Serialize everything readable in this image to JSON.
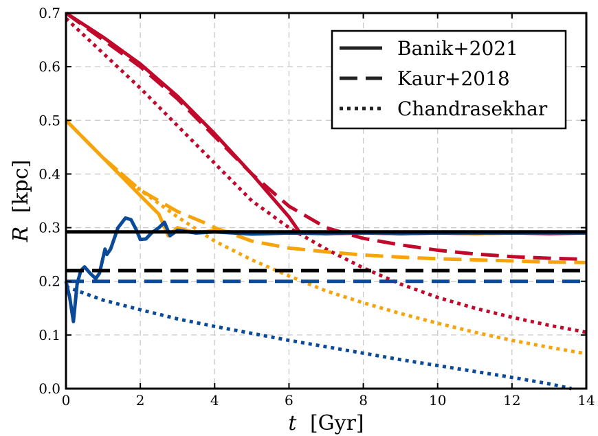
{
  "chart_data": {
    "type": "line",
    "xlabel_var": "t",
    "xlabel_unit": "[Gyr]",
    "ylabel_var": "R",
    "ylabel_unit": "[kpc]",
    "xlim": [
      0,
      14
    ],
    "ylim": [
      0.0,
      0.7
    ],
    "xticks": [
      0,
      2,
      4,
      6,
      8,
      10,
      12,
      14
    ],
    "yticks": [
      0.0,
      0.1,
      0.2,
      0.3,
      0.4,
      0.5,
      0.6,
      0.7
    ],
    "xtick_labels": [
      "0",
      "2",
      "4",
      "6",
      "8",
      "10",
      "12",
      "14"
    ],
    "ytick_labels": [
      "0.0",
      "0.1",
      "0.2",
      "0.3",
      "0.4",
      "0.5",
      "0.6",
      "0.7"
    ],
    "grid": true,
    "legend_position": "top-right",
    "legend": [
      {
        "label": "Banik+2021",
        "style": "solid"
      },
      {
        "label": "Kaur+2018",
        "style": "dashed"
      },
      {
        "label": "Chandrasekhar",
        "style": "dotted"
      }
    ],
    "colors": {
      "red": "#c0092b",
      "orange": "#f7a30b",
      "blue": "#0a4a98",
      "black": "#000000"
    },
    "series": [
      {
        "color": "red",
        "style": "solid",
        "x": [
          0,
          1,
          2,
          3,
          4,
          5,
          6,
          6.3,
          6.6,
          7,
          8,
          9,
          10,
          11,
          12,
          13,
          14
        ],
        "y": [
          0.7,
          0.655,
          0.605,
          0.545,
          0.475,
          0.4,
          0.32,
          0.29,
          0.29,
          0.289,
          0.29,
          0.289,
          0.29,
          0.289,
          0.29,
          0.289,
          0.29
        ]
      },
      {
        "color": "red",
        "style": "dashed",
        "x": [
          0,
          1,
          2,
          3,
          4,
          5,
          6,
          7,
          8,
          9,
          10,
          11,
          12,
          13,
          14
        ],
        "y": [
          0.7,
          0.65,
          0.6,
          0.54,
          0.47,
          0.4,
          0.34,
          0.3,
          0.28,
          0.268,
          0.258,
          0.251,
          0.246,
          0.243,
          0.241
        ]
      },
      {
        "color": "red",
        "style": "dotted",
        "x": [
          0,
          1,
          2,
          3,
          4,
          5,
          6,
          7,
          8,
          9,
          10,
          11,
          12,
          13,
          14
        ],
        "y": [
          0.69,
          0.625,
          0.56,
          0.49,
          0.42,
          0.35,
          0.3,
          0.26,
          0.225,
          0.195,
          0.17,
          0.15,
          0.133,
          0.118,
          0.105
        ]
      },
      {
        "color": "orange",
        "style": "solid",
        "x": [
          0,
          0.5,
          1,
          1.5,
          2,
          2.5,
          2.75,
          3,
          3.5,
          4,
          5,
          6,
          7,
          8,
          9,
          10,
          11,
          12,
          13,
          14
        ],
        "y": [
          0.5,
          0.465,
          0.43,
          0.395,
          0.36,
          0.325,
          0.285,
          0.3,
          0.29,
          0.295,
          0.288,
          0.292,
          0.289,
          0.291,
          0.289,
          0.291,
          0.289,
          0.29,
          0.29,
          0.29
        ]
      },
      {
        "color": "orange",
        "style": "dashed",
        "x": [
          0,
          1,
          2,
          3,
          3.7,
          4,
          5,
          6,
          7,
          8,
          9,
          10,
          11,
          12,
          13,
          14
        ],
        "y": [
          0.5,
          0.43,
          0.37,
          0.33,
          0.31,
          0.3,
          0.275,
          0.262,
          0.255,
          0.249,
          0.245,
          0.242,
          0.24,
          0.238,
          0.236,
          0.235
        ]
      },
      {
        "color": "orange",
        "style": "dotted",
        "x": [
          0,
          1,
          2,
          3,
          4,
          5,
          6,
          7,
          8,
          9,
          10,
          11,
          12,
          13,
          14
        ],
        "y": [
          0.5,
          0.43,
          0.37,
          0.32,
          0.275,
          0.24,
          0.21,
          0.182,
          0.16,
          0.14,
          0.122,
          0.105,
          0.09,
          0.077,
          0.065
        ]
      },
      {
        "color": "blue",
        "style": "solid",
        "x": [
          0,
          0.1,
          0.2,
          0.3,
          0.4,
          0.5,
          0.65,
          0.8,
          0.9,
          1.0,
          1.05,
          1.1,
          1.2,
          1.4,
          1.6,
          1.75,
          1.9,
          2.0,
          2.15,
          2.3,
          2.5,
          2.65,
          2.8,
          3,
          3.5,
          4,
          5,
          6,
          7,
          8,
          9,
          10,
          11,
          12,
          13,
          14
        ],
        "y": [
          0.2,
          0.17,
          0.125,
          0.195,
          0.22,
          0.227,
          0.215,
          0.205,
          0.215,
          0.245,
          0.26,
          0.25,
          0.26,
          0.3,
          0.318,
          0.315,
          0.295,
          0.278,
          0.279,
          0.29,
          0.3,
          0.31,
          0.285,
          0.295,
          0.29,
          0.292,
          0.288,
          0.29,
          0.289,
          0.291,
          0.289,
          0.29,
          0.29,
          0.29,
          0.29,
          0.29
        ]
      },
      {
        "color": "blue",
        "style": "dotted",
        "x": [
          0,
          1,
          2,
          3,
          4,
          5,
          6,
          7,
          8,
          9,
          10,
          11,
          12,
          13,
          13.6
        ],
        "y": [
          0.19,
          0.165,
          0.147,
          0.13,
          0.116,
          0.103,
          0.09,
          0.078,
          0.066,
          0.054,
          0.043,
          0.032,
          0.021,
          0.009,
          0.0
        ]
      },
      {
        "color": "black",
        "style": "solid",
        "x": [
          0,
          14
        ],
        "y": [
          0.292,
          0.292
        ]
      },
      {
        "color": "black",
        "style": "dashed",
        "x": [
          0,
          14
        ],
        "y": [
          0.22,
          0.22
        ]
      },
      {
        "color": "blue",
        "style": "dashed",
        "x": [
          0,
          14
        ],
        "y": [
          0.2,
          0.2
        ]
      }
    ]
  }
}
